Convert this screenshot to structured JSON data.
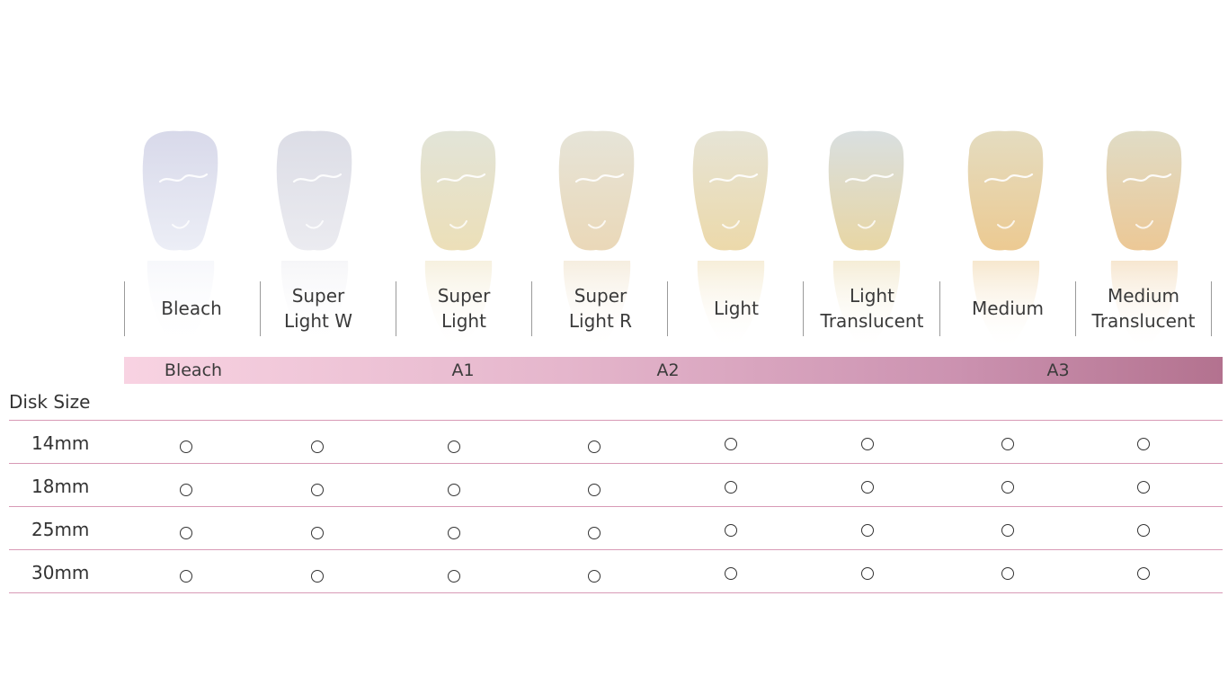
{
  "shades": [
    {
      "label": "Bleach",
      "top": "#d8d9ea",
      "bottom": "#eceef6"
    },
    {
      "label": "Super\nLight W",
      "top": "#dcdde6",
      "bottom": "#ebebf0"
    },
    {
      "label": "Super\nLight",
      "top": "#e2e4d8",
      "bottom": "#ecdfb8"
    },
    {
      "label": "Super\nLight  R",
      "top": "#e6e4d8",
      "bottom": "#ead8b8"
    },
    {
      "label": "Light",
      "top": "#e6e4d6",
      "bottom": "#ecd9aa"
    },
    {
      "label": "Light\nTranslucent",
      "top": "#d9dfe0",
      "bottom": "#e8d6a4"
    },
    {
      "label": "Medium",
      "top": "#e4dcc0",
      "bottom": "#ecca92"
    },
    {
      "label": "Medium\nTranslucent",
      "top": "#e0dcc6",
      "bottom": "#ecc896"
    }
  ],
  "shade_bar": {
    "labels": [
      {
        "text": "Bleach"
      },
      {
        "text": "A1"
      },
      {
        "text": "A2"
      },
      {
        "text": "A3"
      }
    ]
  },
  "disk_size_title": "Disk Size",
  "rows": [
    {
      "size": "14mm",
      "marks": [
        "○",
        "○",
        "○",
        "○",
        "○",
        "○",
        "○",
        "○"
      ]
    },
    {
      "size": "18mm",
      "marks": [
        "○",
        "○",
        "○",
        "○",
        "○",
        "○",
        "○",
        "○"
      ]
    },
    {
      "size": "25mm",
      "marks": [
        "○",
        "○",
        "○",
        "○",
        "○",
        "○",
        "○",
        "○"
      ]
    },
    {
      "size": "30mm",
      "marks": [
        "○",
        "○",
        "○",
        "○",
        "○",
        "○",
        "○",
        "○"
      ]
    }
  ],
  "colors": {
    "divider": "#9a9a9a",
    "row_line": "#d89ab6",
    "bar_start": "#f8d3e2",
    "bar_end": "#b3728f"
  }
}
